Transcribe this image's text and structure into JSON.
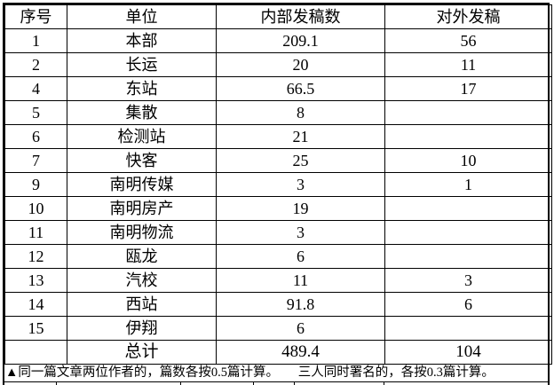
{
  "table": {
    "headers": [
      "序号",
      "单位",
      "内部发稿数",
      "对外发稿"
    ],
    "rows": [
      [
        "1",
        "本部",
        "209.1",
        "56"
      ],
      [
        "2",
        "长运",
        "20",
        "11"
      ],
      [
        "4",
        "东站",
        "66.5",
        "17"
      ],
      [
        "5",
        "集散",
        "8",
        ""
      ],
      [
        "6",
        "检测站",
        "21",
        ""
      ],
      [
        "7",
        "快客",
        "25",
        "10"
      ],
      [
        "9",
        "南明传媒",
        "3",
        "1"
      ],
      [
        "10",
        "南明房产",
        "19",
        ""
      ],
      [
        "11",
        "南明物流",
        "3",
        ""
      ],
      [
        "12",
        "瓯龙",
        "6",
        ""
      ],
      [
        "13",
        "汽校",
        "11",
        "3"
      ],
      [
        "14",
        "西站",
        "91.8",
        "6"
      ],
      [
        "15",
        "伊翔",
        "6",
        ""
      ]
    ],
    "total_row": [
      "",
      "总计",
      "489.4",
      "104"
    ]
  },
  "footnote": "▲同一篇文章两位作者的，篇数各按0.5篇计算。　　三人同时署名的，各按0.3篇计算。"
}
